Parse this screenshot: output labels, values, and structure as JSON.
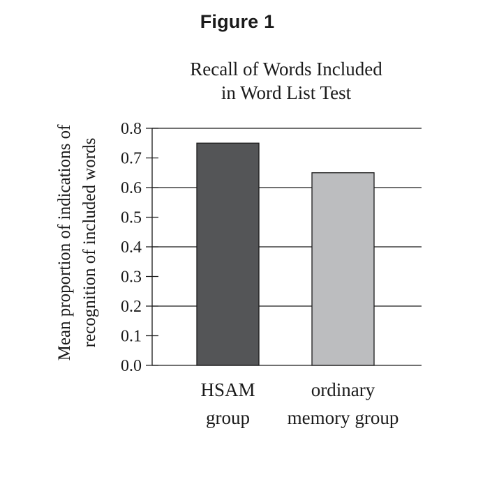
{
  "figure_label": "Figure 1",
  "chart_data": {
    "type": "bar",
    "title_lines": [
      "Recall of Words Included",
      "in Word List Test"
    ],
    "ylabel_lines": [
      "Mean proportion of indications of",
      "recognition of included words"
    ],
    "xlabel": "",
    "categories": [
      {
        "lines": [
          "HSAM",
          "group"
        ]
      },
      {
        "lines": [
          "ordinary",
          "memory group"
        ]
      }
    ],
    "values": [
      0.75,
      0.65
    ],
    "ylim": [
      0.0,
      0.8
    ],
    "yticks": [
      "0.0",
      "0.1",
      "0.2",
      "0.3",
      "0.4",
      "0.5",
      "0.6",
      "0.7",
      "0.8"
    ],
    "gridlines": [
      0.0,
      0.2,
      0.4,
      0.6,
      0.8
    ],
    "grid": true,
    "colors": {
      "bars": [
        "#545557",
        "#bcbdbf"
      ],
      "outline": "#1a1a1a",
      "axis": "#1a1a1a"
    }
  }
}
